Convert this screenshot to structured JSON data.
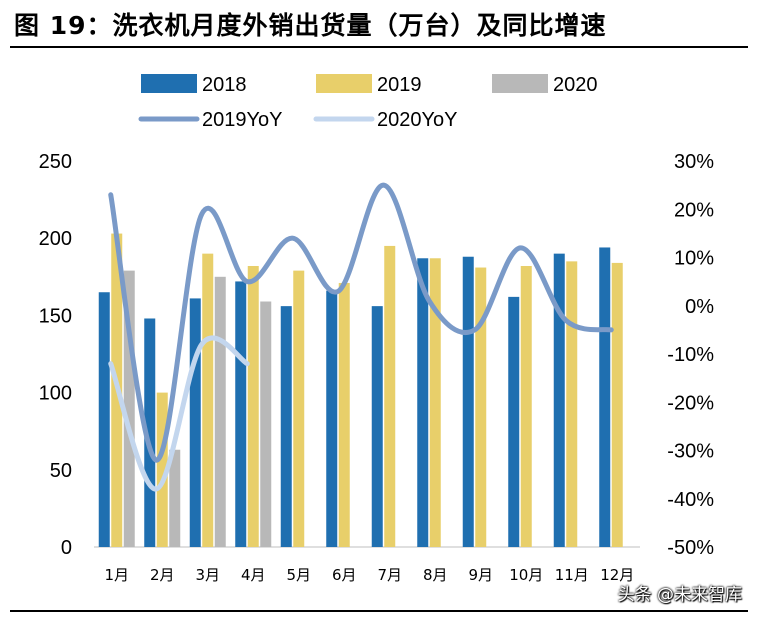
{
  "title": "图 19：洗衣机月度外销出货量（万台）及同比增速",
  "watermark": "头条 @未来智库",
  "chart_data": {
    "type": "bar",
    "categories": [
      "1月",
      "2月",
      "3月",
      "4月",
      "5月",
      "6月",
      "7月",
      "8月",
      "9月",
      "10月",
      "11月",
      "12月"
    ],
    "ylim": [
      0,
      250
    ],
    "yticks": [
      "0",
      "50",
      "100",
      "150",
      "200",
      "250"
    ],
    "y2lim": [
      -50,
      30
    ],
    "y2ticks": [
      "-50%",
      "-40%",
      "-30%",
      "-20%",
      "-10%",
      "0%",
      "10%",
      "20%",
      "30%"
    ],
    "legend_position": "top",
    "bar_series": [
      {
        "name": "2018",
        "color": "#1f6fb0",
        "values": [
          165,
          148,
          161,
          172,
          156,
          166,
          156,
          187,
          188,
          162,
          190,
          194
        ]
      },
      {
        "name": "2019",
        "color": "#e8cf6a",
        "values": [
          203,
          100,
          190,
          182,
          179,
          171,
          195,
          187,
          181,
          182,
          185,
          184
        ]
      },
      {
        "name": "2020",
        "color": "#b8b8b8",
        "values": [
          179,
          63,
          175,
          159,
          null,
          null,
          null,
          null,
          null,
          null,
          null,
          null
        ]
      }
    ],
    "line_series": [
      {
        "name": "2019YoY",
        "color": "#7a9ac8",
        "values": [
          23,
          -32,
          19,
          5,
          14,
          3,
          25,
          1,
          -5,
          12,
          -3,
          -5
        ]
      },
      {
        "name": "2020YoY",
        "color": "#c3d6ee",
        "values": [
          -12,
          -38,
          -8,
          -12,
          null,
          null,
          null,
          null,
          null,
          null,
          null,
          null
        ]
      }
    ]
  }
}
